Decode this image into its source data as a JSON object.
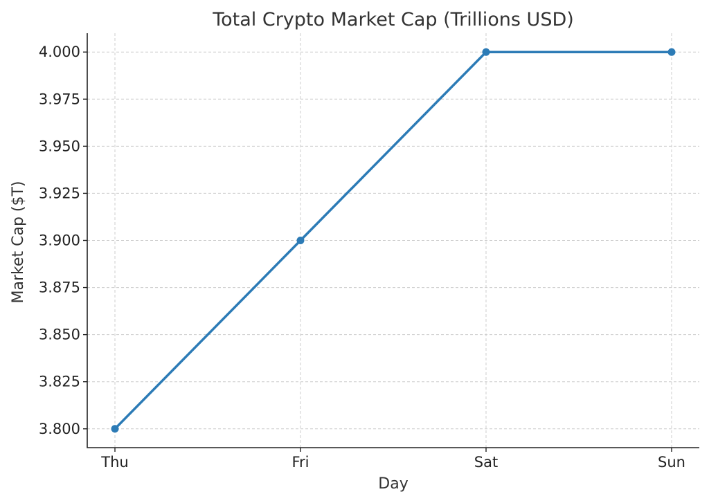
{
  "chart_data": {
    "type": "line",
    "title": "Total Crypto Market Cap (Trillions USD)",
    "xlabel": "Day",
    "ylabel": "Market Cap ($T)",
    "categories": [
      "Thu",
      "Fri",
      "Sat",
      "Sun"
    ],
    "series": [
      {
        "values": [
          3.8,
          3.9,
          4.0,
          4.0
        ],
        "color": "#2c7bb6"
      }
    ],
    "ylim": [
      3.79,
      4.01
    ],
    "yticks": [
      3.8,
      3.825,
      3.85,
      3.875,
      3.9,
      3.925,
      3.95,
      3.975,
      4.0
    ],
    "ytick_labels": [
      "3.800",
      "3.825",
      "3.850",
      "3.875",
      "3.900",
      "3.925",
      "3.950",
      "3.975",
      "4.000"
    ],
    "grid": true,
    "markers": true
  }
}
